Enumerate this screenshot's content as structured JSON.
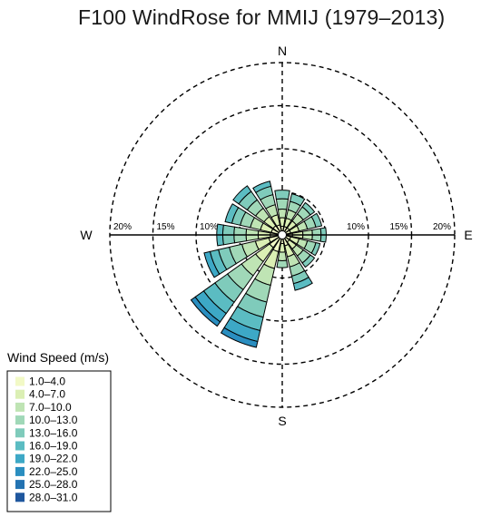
{
  "chart_data": {
    "type": "windrose",
    "title": "F100 WindRose for MMIJ (1979–2013)",
    "directions": [
      "N",
      "NNE",
      "NE",
      "ENE",
      "E",
      "ESE",
      "SE",
      "SSE",
      "S",
      "SSW",
      "SW",
      "WSW",
      "W",
      "WNW",
      "NW",
      "NNW"
    ],
    "direction_angles_deg": [
      0,
      22.5,
      45,
      67.5,
      90,
      112.5,
      135,
      157.5,
      180,
      202.5,
      225,
      247.5,
      270,
      292.5,
      315,
      337.5
    ],
    "compass_labels": [
      "N",
      "E",
      "S",
      "W"
    ],
    "radial_ticks": [
      5,
      10,
      15,
      20
    ],
    "radial_tick_labels": [
      "10%",
      "15%",
      "20%"
    ],
    "radial_tick_label_values": [
      10,
      15,
      20
    ],
    "radial_unit": "%",
    "rlim": [
      0,
      20
    ],
    "grid": true,
    "legend": {
      "title": "Wind Speed (m/s)",
      "placement": "bottom-left",
      "bins": [
        "1.0–4.0",
        "4.0–7.0",
        "7.0–10.0",
        "10.0–13.0",
        "13.0–16.0",
        "16.0–19.0",
        "19.0–22.0",
        "22.0–25.0",
        "25.0–28.0",
        "28.0–31.0"
      ],
      "colors": [
        "#f2f9c6",
        "#dbefb4",
        "#bfe4b4",
        "#a0d8b8",
        "#7fcbbb",
        "#5bbcc2",
        "#3da8c6",
        "#2a8ec0",
        "#2373b2",
        "#1f579e"
      ]
    },
    "series": [
      {
        "direction": "N",
        "cumulative_percent": [
          1.0,
          2.0,
          3.0,
          4.2,
          5.2
        ]
      },
      {
        "direction": "NNE",
        "cumulative_percent": [
          1.0,
          2.0,
          3.0,
          4.0,
          4.9
        ]
      },
      {
        "direction": "NE",
        "cumulative_percent": [
          1.0,
          2.0,
          3.0,
          4.0,
          4.6
        ]
      },
      {
        "direction": "ENE",
        "cumulative_percent": [
          1.0,
          2.0,
          3.0,
          4.0,
          4.7
        ]
      },
      {
        "direction": "E",
        "cumulative_percent": [
          1.2,
          2.4,
          3.5,
          4.5,
          5.1
        ]
      },
      {
        "direction": "ESE",
        "cumulative_percent": [
          1.0,
          2.0,
          3.0,
          4.0,
          4.5
        ]
      },
      {
        "direction": "SE",
        "cumulative_percent": [
          1.0,
          2.0,
          3.0,
          4.0,
          4.6
        ]
      },
      {
        "direction": "SSE",
        "cumulative_percent": [
          1.3,
          2.6,
          3.8,
          4.9,
          5.8,
          6.6
        ]
      },
      {
        "direction": "S",
        "cumulative_percent": [
          1.0,
          2.0,
          3.0,
          3.8
        ]
      },
      {
        "direction": "SSW",
        "cumulative_percent": [
          2.0,
          4.0,
          6.0,
          8.0,
          9.8,
          11.4,
          12.7,
          13.4
        ]
      },
      {
        "direction": "SW",
        "cumulative_percent": [
          1.8,
          3.8,
          5.8,
          7.8,
          9.6,
          11.2,
          12.4,
          13.0
        ]
      },
      {
        "direction": "WSW",
        "cumulative_percent": [
          1.6,
          3.2,
          4.8,
          6.3,
          7.6,
          8.6,
          9.3
        ]
      },
      {
        "direction": "W",
        "cumulative_percent": [
          1.4,
          2.8,
          4.2,
          5.6,
          6.9,
          7.6
        ]
      },
      {
        "direction": "WNW",
        "cumulative_percent": [
          1.3,
          2.6,
          3.8,
          5.0,
          6.0,
          6.8
        ]
      },
      {
        "direction": "NW",
        "cumulative_percent": [
          1.3,
          2.6,
          3.8,
          5.0,
          6.2,
          7.0
        ]
      },
      {
        "direction": "NNW",
        "cumulative_percent": [
          1.2,
          2.4,
          3.6,
          4.8,
          5.8,
          6.4
        ]
      }
    ]
  }
}
